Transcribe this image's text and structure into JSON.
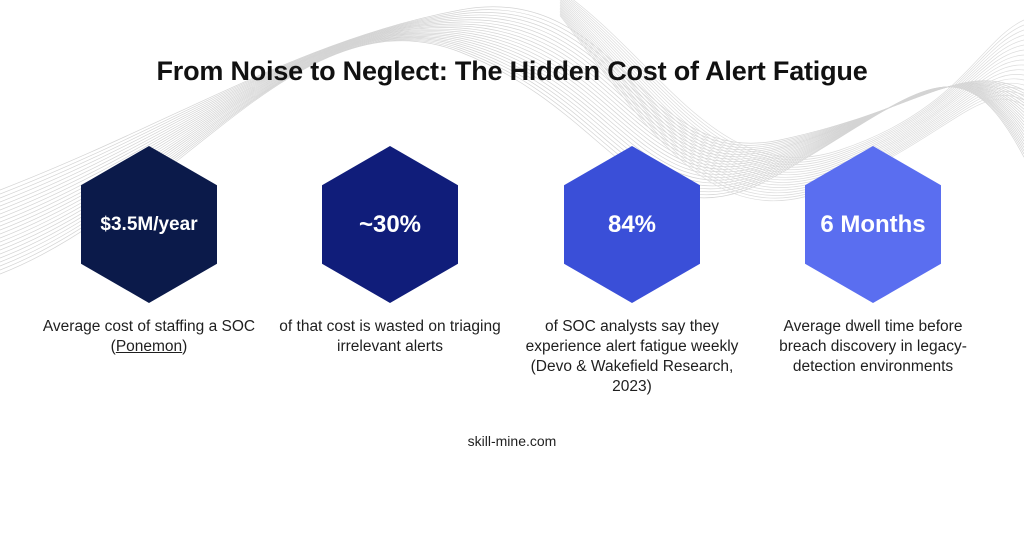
{
  "title": "From Noise to Neglect: The Hidden Cost of Alert Fatigue",
  "stats": [
    {
      "value": "$3.5M/year",
      "color": "#0b1a4a",
      "caption_pre": "Average cost of staffing a SOC (",
      "caption_link": "Ponemon",
      "caption_post": ")"
    },
    {
      "value": "~30%",
      "color": "#101d7a",
      "caption": "of that cost is wasted on triaging irrelevant alerts"
    },
    {
      "value": "84%",
      "color": "#3a4fd8",
      "caption": "of SOC analysts say they experience alert fatigue weekly (Devo & Wakefield Research, 2023)"
    },
    {
      "value": "6 Months",
      "color": "#5a6ef0",
      "caption": "Average dwell time before breach discovery in legacy-detection environments"
    }
  ],
  "footer": "skill-mine.com"
}
